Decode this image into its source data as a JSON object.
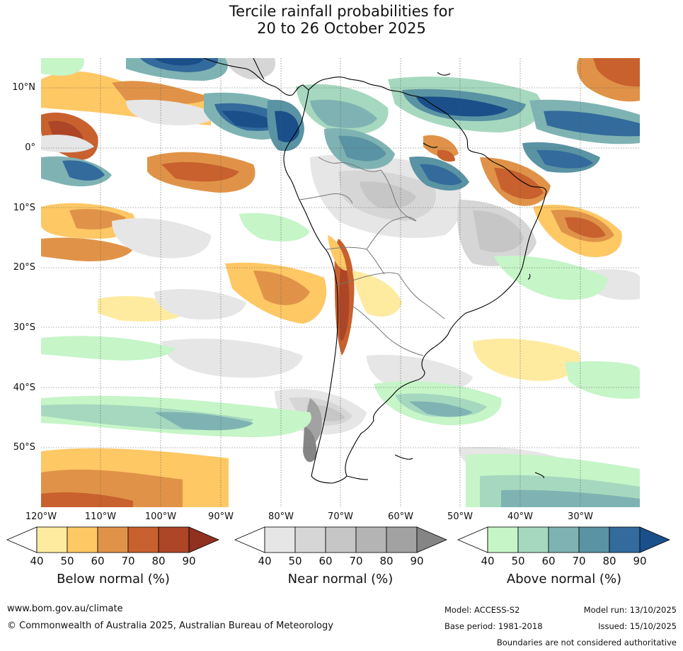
{
  "title": {
    "line1": "Tercile rainfall probabilities for",
    "line2": "20 to 26 October 2025"
  },
  "lat_labels": [
    "10°N",
    "0°",
    "10°S",
    "20°S",
    "30°S",
    "40°S",
    "50°S"
  ],
  "lon_labels": [
    "120°W",
    "110°W",
    "100°W",
    "90°W",
    "80°W",
    "70°W",
    "60°W",
    "50°W",
    "40°W",
    "30°W"
  ],
  "colorbars": [
    {
      "name": "below",
      "title": "Below normal (%)",
      "ticks": [
        "40",
        "50",
        "60",
        "70",
        "80",
        "90"
      ],
      "colors": [
        "#ffffff",
        "#ffeba0",
        "#fec865",
        "#e09348",
        "#c8612e",
        "#ad4527",
        "#90301f"
      ]
    },
    {
      "name": "near",
      "title": "Near normal (%)",
      "ticks": [
        "40",
        "50",
        "60",
        "70",
        "80",
        "90"
      ],
      "colors": [
        "#ffffff",
        "#e6e6e6",
        "#d6d6d6",
        "#c6c6c6",
        "#b4b4b4",
        "#a2a2a2",
        "#858585"
      ]
    },
    {
      "name": "above",
      "title": "Above normal (%)",
      "ticks": [
        "40",
        "50",
        "60",
        "70",
        "80",
        "90"
      ],
      "colors": [
        "#ffffff",
        "#c6f5c8",
        "#a6d8bf",
        "#7fb3b3",
        "#5a93a3",
        "#336b9c",
        "#1a4f8a"
      ]
    }
  ],
  "footer": {
    "url": "www.bom.gov.au/climate",
    "copyright": "© Commonwealth of Australia 2025, Australian Bureau of Meteorology",
    "model": "Model: ACCESS-S2",
    "model_run": "Model run: 13/10/2025",
    "base_period": "Base period: 1981-2018",
    "issued": "Issued: 15/10/2025",
    "disclaimer": "Boundaries are not considered authoritative"
  }
}
